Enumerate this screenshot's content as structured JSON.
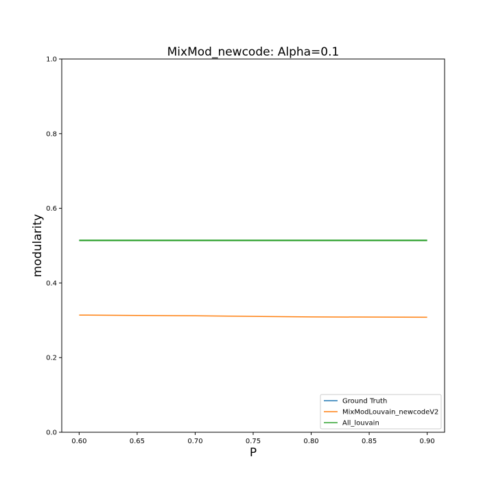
{
  "chart_data": {
    "type": "line",
    "title": "MixMod_newcode: Alpha=0.1",
    "xlabel": "P",
    "ylabel": "modularity",
    "xlim": [
      0.585,
      0.915
    ],
    "ylim": [
      0.0,
      1.0
    ],
    "xticks": [
      "0.60",
      "0.65",
      "0.70",
      "0.75",
      "0.80",
      "0.85",
      "0.90"
    ],
    "yticks": [
      "0.0",
      "0.2",
      "0.4",
      "0.6",
      "0.8",
      "1.0"
    ],
    "legend_position": "lower right",
    "grid": false,
    "x": [
      0.6,
      0.7,
      0.8,
      0.9
    ],
    "series": [
      {
        "name": "Ground Truth",
        "color": "#1f77b4",
        "values": [
          0.514,
          0.514,
          0.514,
          0.514
        ]
      },
      {
        "name": "MixModLouvain_newcodeV2",
        "color": "#ff7f0e",
        "values": [
          0.314,
          0.312,
          0.309,
          0.308
        ]
      },
      {
        "name": "All_louvain",
        "color": "#2ca02c",
        "values": [
          0.514,
          0.514,
          0.514,
          0.514
        ]
      }
    ]
  }
}
